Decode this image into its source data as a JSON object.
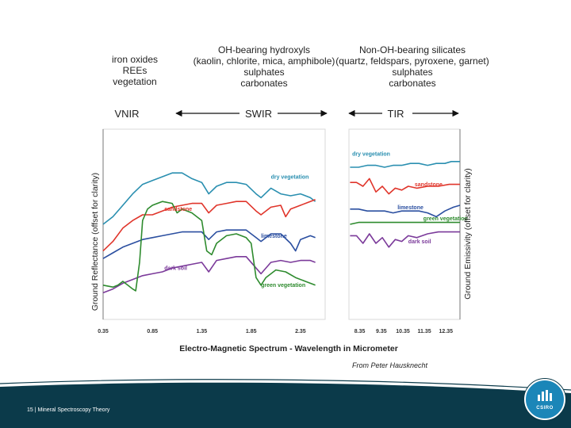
{
  "header": {
    "vnir_minerals": [
      "iron oxides",
      "REEs",
      "vegetation"
    ],
    "swir_minerals": [
      "OH-bearing hydroxyls",
      "(kaolin, chlorite, mica, amphibole)",
      "sulphates",
      "carbonates"
    ],
    "tir_minerals": [
      "Non-OH-bearing silicates",
      "(quartz, feldspars, pyroxene, garnet)",
      "sulphates",
      "carbonates"
    ],
    "region_labels": {
      "vnir": "VNIR",
      "swir": "SWIR",
      "tir": "TIR"
    }
  },
  "credit": "From Peter Hausknecht",
  "footer": {
    "label": "15  |  Mineral Spectroscopy Theory"
  },
  "logo": {
    "text": "CSIRO"
  },
  "colors": {
    "green_veg": "#2e8b2e",
    "dry_veg": "#2a8fb0",
    "sandstone": "#e0352b",
    "limestone": "#2b4fa0",
    "dark_soil": "#7b3a9a",
    "footer": "#0b3a4a"
  },
  "chart_data": [
    {
      "type": "line",
      "panel": "reflectance",
      "xlabel": "Electro-Magnetic Spectrum - Wavelength in Micrometer",
      "ylabel": "Ground Reflectance  (offset for clarity)",
      "xlim": [
        0.35,
        2.6
      ],
      "ylim": [
        0,
        1
      ],
      "xticks": [
        0.35,
        0.85,
        1.35,
        1.85,
        2.35
      ],
      "xtick_labels": [
        "0.35",
        "0.85",
        "1.35",
        "1.85",
        "2.35"
      ],
      "series": [
        {
          "name": "dry vegetation",
          "label_at": [
            2.05,
            0.74
          ],
          "color": "#2a8fb0",
          "x": [
            0.35,
            0.45,
            0.55,
            0.65,
            0.75,
            0.85,
            0.95,
            1.05,
            1.15,
            1.25,
            1.35,
            1.42,
            1.5,
            1.6,
            1.7,
            1.8,
            1.9,
            1.95,
            2.05,
            2.15,
            2.25,
            2.35,
            2.45,
            2.5
          ],
          "y": [
            0.5,
            0.54,
            0.6,
            0.66,
            0.71,
            0.73,
            0.75,
            0.77,
            0.77,
            0.74,
            0.72,
            0.66,
            0.7,
            0.72,
            0.72,
            0.71,
            0.66,
            0.64,
            0.69,
            0.66,
            0.65,
            0.66,
            0.64,
            0.62
          ]
        },
        {
          "name": "sandstone",
          "label_at": [
            0.97,
            0.57
          ],
          "color": "#e0352b",
          "x": [
            0.35,
            0.45,
            0.55,
            0.65,
            0.75,
            0.85,
            0.95,
            1.05,
            1.15,
            1.25,
            1.35,
            1.42,
            1.5,
            1.6,
            1.7,
            1.8,
            1.9,
            1.95,
            2.05,
            2.15,
            2.2,
            2.25,
            2.35,
            2.45,
            2.5
          ],
          "y": [
            0.36,
            0.41,
            0.48,
            0.52,
            0.55,
            0.55,
            0.57,
            0.59,
            0.6,
            0.61,
            0.61,
            0.56,
            0.6,
            0.61,
            0.62,
            0.62,
            0.57,
            0.55,
            0.59,
            0.6,
            0.54,
            0.58,
            0.6,
            0.62,
            0.63
          ]
        },
        {
          "name": "limestone",
          "label_at": [
            1.95,
            0.43
          ],
          "color": "#2b4fa0",
          "x": [
            0.35,
            0.45,
            0.55,
            0.65,
            0.75,
            0.85,
            0.95,
            1.05,
            1.15,
            1.25,
            1.35,
            1.42,
            1.5,
            1.6,
            1.7,
            1.8,
            1.9,
            1.95,
            2.05,
            2.15,
            2.25,
            2.3,
            2.35,
            2.45,
            2.5
          ],
          "y": [
            0.32,
            0.35,
            0.38,
            0.4,
            0.42,
            0.43,
            0.44,
            0.45,
            0.46,
            0.46,
            0.46,
            0.42,
            0.46,
            0.47,
            0.47,
            0.47,
            0.43,
            0.41,
            0.45,
            0.45,
            0.4,
            0.36,
            0.42,
            0.44,
            0.43
          ]
        },
        {
          "name": "dark soil",
          "label_at": [
            0.97,
            0.26
          ],
          "color": "#7b3a9a",
          "x": [
            0.35,
            0.45,
            0.55,
            0.65,
            0.75,
            0.85,
            0.95,
            1.05,
            1.15,
            1.25,
            1.35,
            1.42,
            1.5,
            1.6,
            1.7,
            1.8,
            1.9,
            1.95,
            2.05,
            2.15,
            2.25,
            2.35,
            2.45,
            2.5
          ],
          "y": [
            0.14,
            0.16,
            0.19,
            0.21,
            0.23,
            0.24,
            0.25,
            0.27,
            0.28,
            0.29,
            0.3,
            0.25,
            0.31,
            0.32,
            0.33,
            0.33,
            0.27,
            0.24,
            0.3,
            0.31,
            0.3,
            0.31,
            0.31,
            0.3
          ]
        },
        {
          "name": "green vegetation",
          "label_at": [
            1.95,
            0.17
          ],
          "color": "#2e8b2e",
          "x": [
            0.35,
            0.45,
            0.5,
            0.55,
            0.6,
            0.65,
            0.68,
            0.72,
            0.75,
            0.8,
            0.85,
            0.95,
            1.05,
            1.1,
            1.15,
            1.25,
            1.35,
            1.4,
            1.45,
            1.5,
            1.6,
            1.7,
            1.8,
            1.85,
            1.9,
            1.95,
            2.0,
            2.1,
            2.2,
            2.3,
            2.4,
            2.5
          ],
          "y": [
            0.18,
            0.17,
            0.18,
            0.2,
            0.18,
            0.16,
            0.15,
            0.3,
            0.52,
            0.58,
            0.6,
            0.62,
            0.61,
            0.56,
            0.58,
            0.56,
            0.52,
            0.36,
            0.34,
            0.4,
            0.44,
            0.45,
            0.43,
            0.4,
            0.22,
            0.18,
            0.22,
            0.26,
            0.25,
            0.22,
            0.2,
            0.18
          ]
        }
      ]
    },
    {
      "type": "line",
      "panel": "emissivity",
      "ylabel": "Ground Emissivity  (offset for clarity)",
      "xlim": [
        7.85,
        13.0
      ],
      "ylim": [
        0,
        1
      ],
      "xticks": [
        8.35,
        9.35,
        10.35,
        11.35,
        12.35
      ],
      "xtick_labels": [
        "8.35",
        "9.35",
        "10.35",
        "11.35",
        "12.35"
      ],
      "series": [
        {
          "name": "dry vegetation",
          "label_at": [
            8.0,
            0.86
          ],
          "color": "#2a8fb0",
          "x": [
            7.9,
            8.3,
            8.7,
            9.1,
            9.5,
            9.9,
            10.3,
            10.7,
            11.1,
            11.5,
            11.9,
            12.3,
            12.6,
            13.0
          ],
          "y": [
            0.8,
            0.8,
            0.81,
            0.81,
            0.8,
            0.81,
            0.81,
            0.82,
            0.82,
            0.81,
            0.82,
            0.82,
            0.83,
            0.83
          ]
        },
        {
          "name": "sandstone",
          "label_at": [
            10.9,
            0.7
          ],
          "color": "#e0352b",
          "x": [
            7.9,
            8.2,
            8.5,
            8.8,
            9.1,
            9.4,
            9.7,
            10.0,
            10.3,
            10.6,
            11.0,
            11.5,
            12.0,
            12.5,
            13.0
          ],
          "y": [
            0.72,
            0.72,
            0.7,
            0.74,
            0.67,
            0.7,
            0.66,
            0.69,
            0.68,
            0.7,
            0.69,
            0.7,
            0.7,
            0.71,
            0.71
          ]
        },
        {
          "name": "limestone",
          "label_at": [
            10.1,
            0.58
          ],
          "color": "#2b4fa0",
          "x": [
            7.9,
            8.3,
            8.7,
            9.1,
            9.5,
            9.9,
            10.3,
            10.7,
            11.1,
            11.5,
            11.9,
            12.3,
            12.7,
            13.0
          ],
          "y": [
            0.58,
            0.58,
            0.57,
            0.57,
            0.57,
            0.56,
            0.57,
            0.57,
            0.57,
            0.56,
            0.54,
            0.57,
            0.59,
            0.6
          ]
        },
        {
          "name": "green vegetation",
          "label_at": [
            11.3,
            0.52
          ],
          "color": "#2e8b2e",
          "x": [
            7.9,
            8.3,
            8.7,
            9.1,
            9.5,
            9.9,
            10.3,
            10.7,
            11.1,
            11.5,
            11.9,
            12.3,
            12.7,
            13.0
          ],
          "y": [
            0.5,
            0.51,
            0.51,
            0.51,
            0.51,
            0.51,
            0.51,
            0.51,
            0.51,
            0.51,
            0.51,
            0.51,
            0.51,
            0.51
          ]
        },
        {
          "name": "dark soil",
          "label_at": [
            10.6,
            0.4
          ],
          "color": "#7b3a9a",
          "x": [
            7.9,
            8.2,
            8.5,
            8.8,
            9.1,
            9.4,
            9.7,
            10.0,
            10.3,
            10.6,
            11.0,
            11.5,
            12.0,
            12.5,
            13.0
          ],
          "y": [
            0.44,
            0.44,
            0.4,
            0.45,
            0.4,
            0.43,
            0.38,
            0.42,
            0.41,
            0.44,
            0.43,
            0.45,
            0.46,
            0.46,
            0.46
          ]
        }
      ]
    }
  ]
}
